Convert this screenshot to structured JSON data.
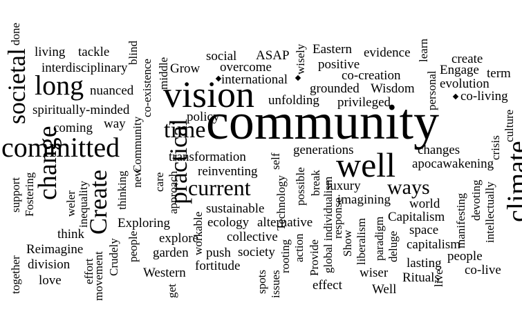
{
  "words": {
    "w0": "community",
    "w1": "vision",
    "w2": "well",
    "w3": "long",
    "w4": "committed",
    "w5": "climate",
    "w6": "practical",
    "w7": "societal",
    "w8": "change",
    "w9": "Create",
    "w10": "current",
    "w11": "time",
    "w12": "ways",
    "w13": "living",
    "w14": "tackle",
    "w15": "interdisciplinary",
    "w16": "nuanced",
    "w17": "spiritually-minded",
    "w18": "coming",
    "w19": "way",
    "w20": "social",
    "w21": "ASAP",
    "w22": "overcome",
    "w23": "international",
    "w24": "Grow",
    "w25": "Eastern",
    "w26": "evidence",
    "w27": "positive",
    "w28": "co-creation",
    "w29": "grounded",
    "w30": "Wisdom",
    "w31": "unfolding",
    "w32": "privileged",
    "w33": "create",
    "w34": "Engage",
    "w35": "term",
    "w36": "evolution",
    "w37": "co-living",
    "w38": "policy",
    "w39": "transformation",
    "w40": "generations",
    "w41": "changes",
    "w42": "apocawakening",
    "w43": "reinventing",
    "w44": "luxury",
    "w45": "imagining",
    "w46": "world",
    "w47": "Capitalism",
    "w48": "space",
    "w49": "capitalism",
    "w50": "people",
    "w51": "co-live",
    "w52": "lasting",
    "w53": "Rituals",
    "w54": "Well",
    "w55": "wiser",
    "w56": "effect",
    "w57": "sustainable",
    "w58": "ecology",
    "w59": "alternative",
    "w60": "collective",
    "w61": "Exploring",
    "w62": "explore",
    "w63": "garden",
    "w64": "push",
    "w65": "society",
    "w66": "fortitude",
    "w67": "Western",
    "w68": "think",
    "w69": "Reimagine",
    "w70": "division",
    "w71": "love",
    "w72": "done",
    "w73": "blind",
    "w74": "middle",
    "w75": "co-existence",
    "w76": "wisely",
    "w77": "learn",
    "w78": "personal",
    "w79": "culture",
    "w80": "crisis",
    "w81": "intellectually",
    "w82": "devoting",
    "w83": "manifesting",
    "w84": "live",
    "w85": "Fostering",
    "w86": "support",
    "w87": "weler",
    "w88": "inequality",
    "w89": "thinking",
    "w90": "new",
    "w91": "Community",
    "w92": "care",
    "w93": "approach",
    "w94": "self",
    "w95": "Technology",
    "w96": "possible",
    "w97": "break",
    "w98": "global individualism",
    "w99": "response",
    "w100": "Show",
    "w101": "liberalism",
    "w102": "paradigm",
    "w103": "deluge",
    "w104": "action",
    "w105": "Provide",
    "w106": "rooting",
    "w107": "spots",
    "w108": "issues",
    "w109": "workable",
    "w110": "get",
    "w111": "people",
    "w112": "Crudely",
    "w113": "movement",
    "w114": "effort",
    "w115": "together"
  }
}
